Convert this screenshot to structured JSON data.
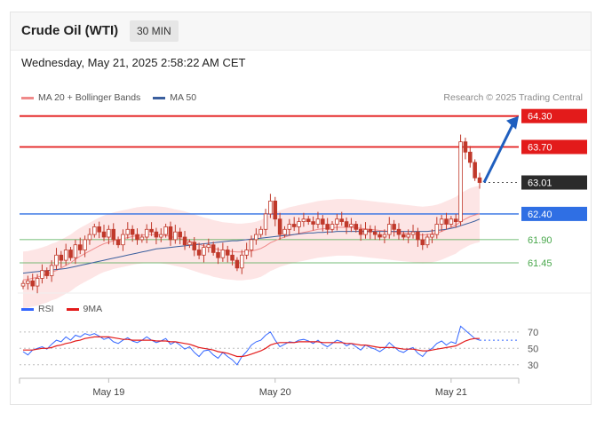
{
  "header": {
    "title": "Crude Oil (WTI)",
    "timeframe": "30 MIN"
  },
  "timestamp": "Wednesday, May 21, 2025 2:58:22 AM CET",
  "credit": "Research © 2025 Trading Central",
  "colors": {
    "candle": "#c0392b",
    "bollinger": "#fde0e0",
    "ma20": "#f08a8a",
    "ma50": "#3b5f9e",
    "resistance": "#e31b1b",
    "support_blue": "#2f6fe4",
    "support_green": "#49a84c",
    "rsi": "#3366ff",
    "rsi_ma": "#e31b1b",
    "last_price": "#2b2b2b"
  },
  "chart_data": [
    {
      "type": "candlestick",
      "title": "",
      "legend": [
        {
          "name": "MA 20 + Bollinger Bands",
          "color": "#f08a8a"
        },
        {
          "name": "MA 50",
          "color": "#3b5f9e"
        }
      ],
      "x_ticks": [
        "May 19",
        "May 20",
        "May 21"
      ],
      "ylim": [
        60.95,
        64.45
      ],
      "levels": [
        {
          "label": "64.30",
          "value": 64.3,
          "style": "resistance"
        },
        {
          "label": "63.70",
          "value": 63.7,
          "style": "resistance"
        },
        {
          "label": "63.01",
          "value": 63.01,
          "style": "last"
        },
        {
          "label": "62.40",
          "value": 62.4,
          "style": "support_blue"
        },
        {
          "label": "61.90",
          "value": 61.9,
          "style": "support_green"
        },
        {
          "label": "61.45",
          "value": 61.45,
          "style": "support_green"
        }
      ],
      "closes": [
        61.05,
        61.1,
        61.0,
        61.15,
        61.3,
        61.2,
        61.4,
        61.6,
        61.5,
        61.7,
        61.55,
        61.8,
        61.7,
        61.9,
        62.0,
        62.15,
        62.05,
        61.95,
        62.1,
        61.9,
        61.8,
        62.0,
        62.1,
        62.0,
        61.9,
        61.95,
        62.1,
        62.05,
        61.95,
        62.0,
        62.15,
        61.9,
        62.05,
        61.95,
        61.8,
        61.85,
        61.7,
        61.6,
        61.75,
        61.8,
        61.65,
        61.55,
        61.7,
        61.6,
        61.5,
        61.35,
        61.6,
        61.7,
        61.9,
        62.0,
        62.1,
        62.4,
        62.65,
        62.3,
        62.0,
        62.1,
        62.2,
        62.15,
        62.25,
        62.3,
        62.25,
        62.2,
        62.3,
        62.2,
        62.1,
        62.2,
        62.3,
        62.25,
        62.15,
        62.2,
        62.1,
        62.0,
        62.1,
        62.05,
        62.0,
        61.95,
        62.0,
        62.2,
        62.1,
        62.0,
        61.95,
        62.0,
        62.05,
        61.9,
        61.8,
        61.95,
        62.0,
        62.2,
        62.3,
        62.2,
        62.3,
        62.25,
        63.8,
        63.6,
        63.4,
        63.1,
        63.01
      ],
      "ma20": [
        61.12,
        61.13,
        61.15,
        61.17,
        61.2,
        61.23,
        61.27,
        61.3,
        61.35,
        61.4,
        61.45,
        61.52,
        61.58,
        61.63,
        61.68,
        61.73,
        61.78,
        61.82,
        61.85,
        61.88,
        61.9,
        61.92,
        61.94,
        61.96,
        61.98,
        61.99,
        62.0,
        62.0,
        62.0,
        61.99,
        61.98,
        61.96,
        61.94,
        61.92,
        61.9,
        61.87,
        61.84,
        61.81,
        61.78,
        61.76,
        61.73,
        61.71,
        61.69,
        61.68,
        61.67,
        61.66,
        61.66,
        61.67,
        61.68,
        61.7,
        61.73,
        61.78,
        61.84,
        61.88,
        61.92,
        61.95,
        61.98,
        62.0,
        62.02,
        62.04,
        62.06,
        62.08,
        62.1,
        62.11,
        62.12,
        62.13,
        62.14,
        62.14,
        62.14,
        62.14,
        62.13,
        62.12,
        62.11,
        62.1,
        62.09,
        62.08,
        62.07,
        62.06,
        62.05,
        62.04,
        62.03,
        62.02,
        62.01,
        62.0,
        61.99,
        62.0,
        62.01,
        62.03,
        62.06,
        62.1,
        62.14,
        62.18,
        62.25,
        62.3,
        62.35,
        62.38,
        62.4
      ],
      "ma50": [
        61.25,
        61.26,
        61.27,
        61.28,
        61.29,
        61.3,
        61.31,
        61.32,
        61.33,
        61.34,
        61.36,
        61.38,
        61.4,
        61.42,
        61.44,
        61.46,
        61.48,
        61.5,
        61.52,
        61.54,
        61.56,
        61.58,
        61.6,
        61.62,
        61.64,
        61.66,
        61.68,
        61.7,
        61.72,
        61.73,
        61.74,
        61.75,
        61.76,
        61.77,
        61.78,
        61.79,
        61.8,
        61.81,
        61.82,
        61.83,
        61.84,
        61.85,
        61.86,
        61.87,
        61.88,
        61.88,
        61.89,
        61.9,
        61.91,
        61.92,
        61.93,
        61.94,
        61.95,
        61.96,
        61.97,
        61.98,
        61.99,
        62.0,
        62.01,
        62.02,
        62.03,
        62.03,
        62.04,
        62.04,
        62.05,
        62.05,
        62.06,
        62.06,
        62.06,
        62.06,
        62.06,
        62.06,
        62.06,
        62.06,
        62.06,
        62.06,
        62.06,
        62.06,
        62.06,
        62.06,
        62.06,
        62.06,
        62.06,
        62.06,
        62.06,
        62.06,
        62.07,
        62.08,
        62.09,
        62.1,
        62.12,
        62.14,
        62.17,
        62.2,
        62.23,
        62.26,
        62.3
      ],
      "bb_width": 0.55,
      "arrow": {
        "from": 63.01,
        "to": 64.3
      }
    },
    {
      "type": "line",
      "title": "",
      "legend": [
        {
          "name": "RSI",
          "color": "#3366ff"
        },
        {
          "name": "9MA",
          "color": "#e31b1b"
        }
      ],
      "ylim": [
        20,
        85
      ],
      "y_ticks": [
        "70",
        "50",
        "30"
      ],
      "rsi": [
        46,
        42,
        48,
        50,
        52,
        49,
        55,
        60,
        58,
        64,
        60,
        66,
        64,
        68,
        66,
        68,
        65,
        61,
        63,
        58,
        56,
        60,
        63,
        59,
        57,
        60,
        64,
        60,
        57,
        59,
        62,
        55,
        58,
        54,
        49,
        52,
        45,
        40,
        47,
        48,
        42,
        38,
        45,
        40,
        36,
        30,
        40,
        46,
        54,
        58,
        60,
        66,
        70,
        60,
        52,
        55,
        58,
        57,
        60,
        61,
        59,
        56,
        60,
        55,
        52,
        56,
        60,
        58,
        53,
        56,
        52,
        48,
        54,
        51,
        49,
        46,
        50,
        57,
        52,
        47,
        45,
        49,
        51,
        44,
        40,
        47,
        50,
        56,
        59,
        54,
        58,
        56,
        77,
        72,
        67,
        62,
        60
      ],
      "rsi_ma": [
        48,
        48,
        48,
        49,
        50,
        50,
        51,
        53,
        54,
        56,
        57,
        59,
        60,
        62,
        63,
        64,
        64,
        64,
        64,
        63,
        62,
        61,
        61,
        60,
        60,
        60,
        60,
        60,
        59,
        59,
        59,
        58,
        58,
        57,
        56,
        55,
        53,
        51,
        50,
        49,
        48,
        46,
        45,
        44,
        42,
        40,
        40,
        41,
        43,
        45,
        47,
        50,
        54,
        56,
        57,
        57,
        57,
        57,
        58,
        58,
        58,
        58,
        58,
        57,
        57,
        57,
        57,
        57,
        56,
        56,
        55,
        54,
        54,
        53,
        52,
        51,
        51,
        51,
        51,
        50,
        49,
        49,
        49,
        48,
        47,
        47,
        48,
        49,
        50,
        51,
        52,
        53,
        56,
        59,
        61,
        62,
        62
      ]
    }
  ]
}
